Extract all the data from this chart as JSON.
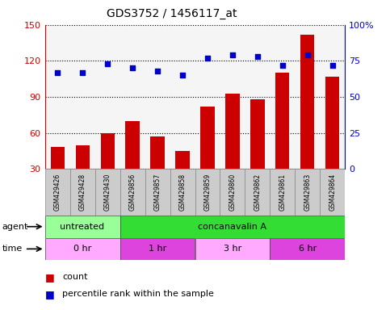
{
  "title": "GDS3752 / 1456117_at",
  "samples": [
    "GSM429426",
    "GSM429428",
    "GSM429430",
    "GSM429856",
    "GSM429857",
    "GSM429858",
    "GSM429859",
    "GSM429860",
    "GSM429862",
    "GSM429861",
    "GSM429863",
    "GSM429864"
  ],
  "counts": [
    48,
    50,
    60,
    70,
    57,
    45,
    82,
    93,
    88,
    110,
    142,
    107
  ],
  "percentiles": [
    67,
    67,
    73,
    70,
    68,
    65,
    77,
    79,
    78,
    72,
    79,
    72
  ],
  "ylim_left": [
    30,
    150
  ],
  "ylim_right": [
    0,
    100
  ],
  "yticks_left": [
    30,
    60,
    90,
    120,
    150
  ],
  "yticks_right": [
    0,
    25,
    50,
    75,
    100
  ],
  "ytick_labels_right": [
    "0",
    "25",
    "50",
    "75",
    "100%"
  ],
  "bar_color": "#cc0000",
  "dot_color": "#0000cc",
  "plot_bg_color": "#f5f5f5",
  "agent_row": [
    {
      "label": "untreated",
      "start": 0,
      "end": 3,
      "color": "#99ff99"
    },
    {
      "label": "concanavalin A",
      "start": 3,
      "end": 12,
      "color": "#33dd33"
    }
  ],
  "time_row": [
    {
      "label": "0 hr",
      "start": 0,
      "end": 3,
      "color": "#ffaaff"
    },
    {
      "label": "1 hr",
      "start": 3,
      "end": 6,
      "color": "#dd44dd"
    },
    {
      "label": "3 hr",
      "start": 6,
      "end": 9,
      "color": "#ffaaff"
    },
    {
      "label": "6 hr",
      "start": 9,
      "end": 12,
      "color": "#dd44dd"
    }
  ],
  "sample_bg_color": "#cccccc",
  "left_axis_color": "#cc0000",
  "right_axis_color": "#0000cc",
  "legend_count": "count",
  "legend_pct": "percentile rank within the sample"
}
